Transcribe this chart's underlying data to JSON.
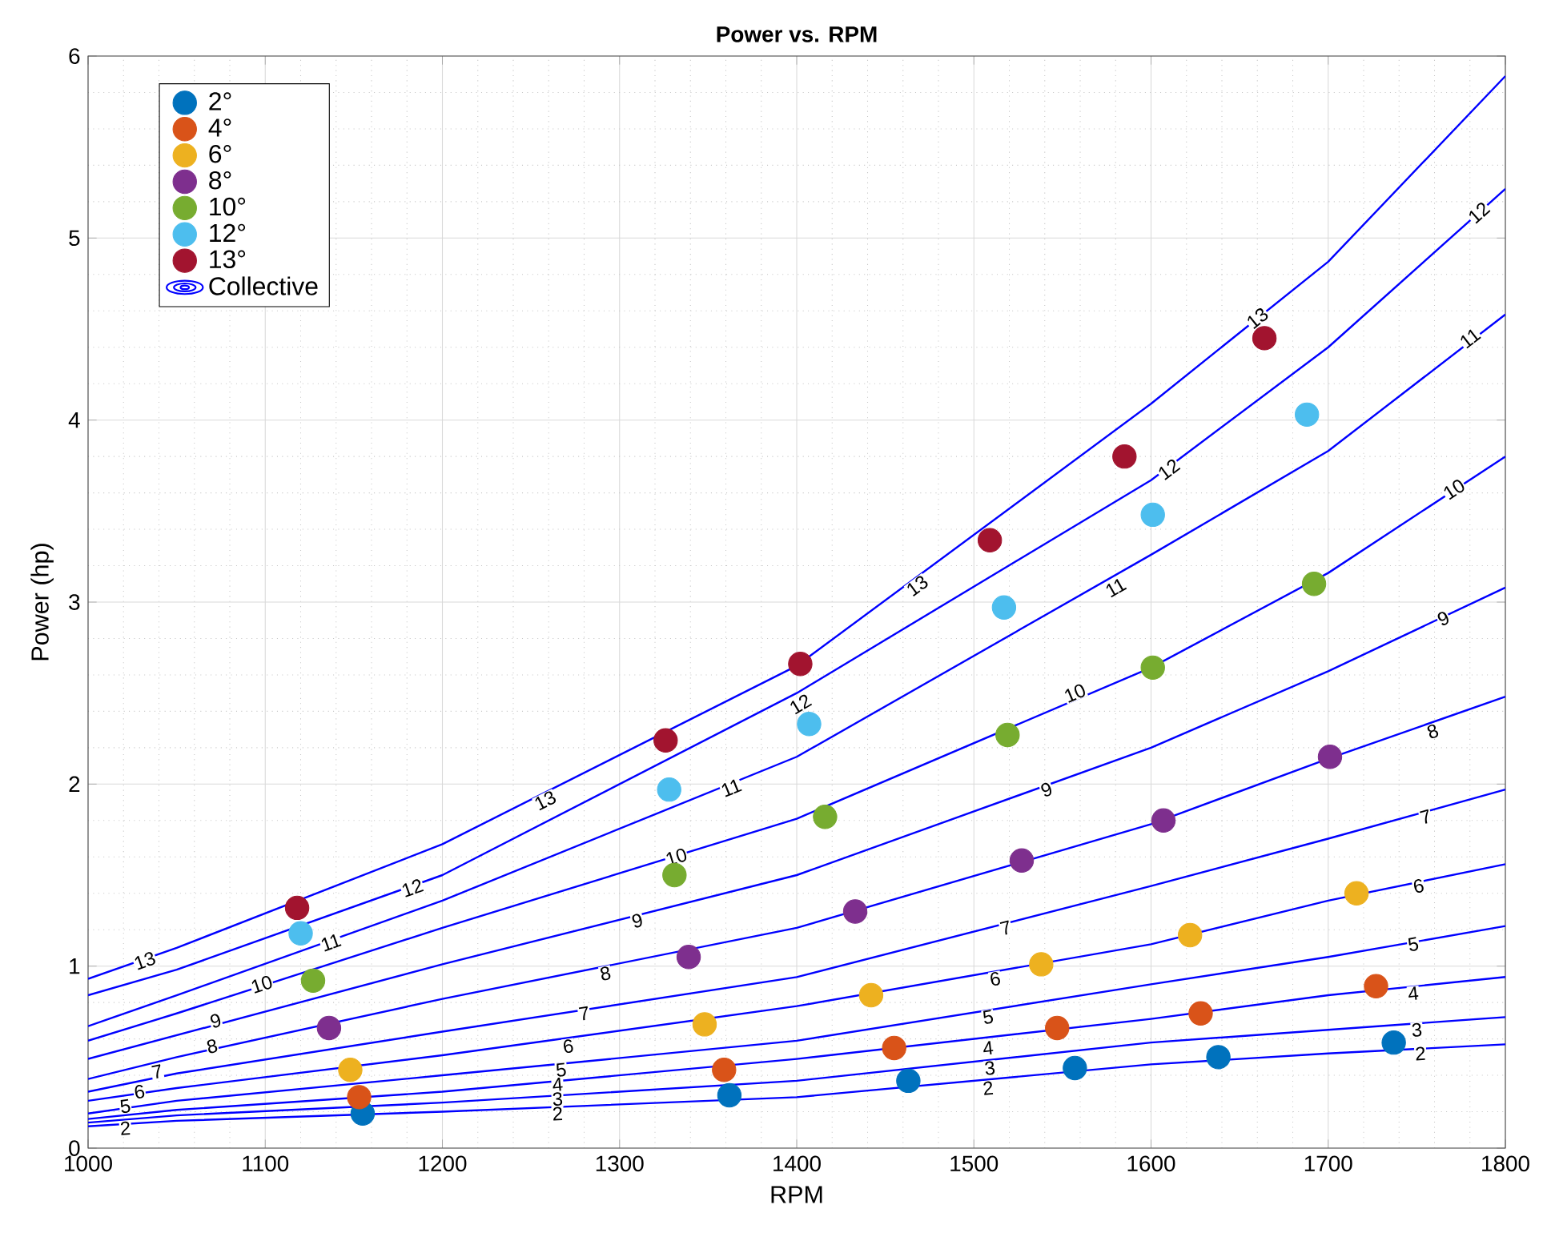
{
  "chart_data": {
    "type": "scatter",
    "title": "Power vs. RPM",
    "xlabel": "RPM",
    "ylabel": "Power (hp)",
    "xlim": [
      1000,
      1800
    ],
    "ylim": [
      0,
      6
    ],
    "xticks": [
      1000,
      1100,
      1200,
      1300,
      1400,
      1500,
      1600,
      1700,
      1800
    ],
    "yticks": [
      0,
      1,
      2,
      3,
      4,
      5,
      6
    ],
    "grid": true,
    "legend": "top left",
    "series": [
      {
        "type": "line",
        "marker": "none",
        "name": "Collective",
        "color": "#0000ff",
        "x": [
          1000,
          1050,
          1200,
          1400,
          1600,
          1700,
          1800
        ],
        "values": [
          0.12,
          0.15,
          0.2,
          0.28,
          0.46,
          0.52,
          0.57
        ]
      },
      {
        "type": "line",
        "marker": "none",
        "color": "#0000ff",
        "x": [
          1000,
          1050,
          1200,
          1400,
          1600,
          1700,
          1800
        ],
        "values": [
          0.14,
          0.18,
          0.25,
          0.37,
          0.58,
          0.65,
          0.72
        ]
      },
      {
        "type": "line",
        "marker": "none",
        "color": "#0000ff",
        "x": [
          1000,
          1050,
          1200,
          1400,
          1600,
          1700,
          1800
        ],
        "values": [
          0.16,
          0.21,
          0.31,
          0.49,
          0.71,
          0.84,
          0.94
        ]
      },
      {
        "type": "line",
        "marker": "none",
        "color": "#0000ff",
        "x": [
          1000,
          1050,
          1200,
          1400,
          1600,
          1700,
          1800
        ],
        "values": [
          0.19,
          0.26,
          0.4,
          0.59,
          0.9,
          1.05,
          1.22
        ]
      },
      {
        "type": "line",
        "marker": "none",
        "color": "#0000ff",
        "x": [
          1000,
          1050,
          1200,
          1400,
          1600,
          1700,
          1800
        ],
        "values": [
          0.26,
          0.33,
          0.51,
          0.78,
          1.12,
          1.36,
          1.56
        ]
      },
      {
        "type": "line",
        "marker": "none",
        "color": "#0000ff",
        "x": [
          1000,
          1050,
          1200,
          1400,
          1600,
          1700,
          1800
        ],
        "values": [
          0.31,
          0.41,
          0.64,
          0.94,
          1.44,
          1.7,
          1.97
        ]
      },
      {
        "type": "line",
        "marker": "none",
        "color": "#0000ff",
        "x": [
          1000,
          1050,
          1200,
          1400,
          1600,
          1700,
          1800
        ],
        "values": [
          0.38,
          0.5,
          0.82,
          1.21,
          1.78,
          2.14,
          2.48
        ]
      },
      {
        "type": "line",
        "marker": "none",
        "color": "#0000ff",
        "x": [
          1000,
          1050,
          1200,
          1400,
          1600,
          1700,
          1800
        ],
        "values": [
          0.49,
          0.62,
          1.01,
          1.5,
          2.2,
          2.62,
          3.08
        ]
      },
      {
        "type": "line",
        "marker": "none",
        "color": "#0000ff",
        "x": [
          1000,
          1050,
          1200,
          1400,
          1600,
          1700,
          1800
        ],
        "values": [
          0.59,
          0.74,
          1.21,
          1.81,
          2.64,
          3.16,
          3.8
        ]
      },
      {
        "type": "line",
        "marker": "none",
        "color": "#0000ff",
        "x": [
          1000,
          1050,
          1200,
          1400,
          1600,
          1700,
          1800
        ],
        "values": [
          0.67,
          0.84,
          1.36,
          2.15,
          3.26,
          3.83,
          4.58
        ]
      },
      {
        "type": "line",
        "marker": "none",
        "color": "#0000ff",
        "x": [
          1000,
          1050,
          1200,
          1400,
          1600,
          1700,
          1800
        ],
        "values": [
          0.84,
          0.98,
          1.5,
          2.5,
          3.67,
          4.4,
          5.27
        ]
      },
      {
        "type": "line",
        "marker": "none",
        "color": "#0000ff",
        "x": [
          1000,
          1050,
          1200,
          1400,
          1600,
          1700,
          1800
        ],
        "values": [
          0.93,
          1.1,
          1.67,
          2.65,
          4.09,
          4.87,
          5.89
        ]
      },
      {
        "name": "2°",
        "marker": "circle",
        "color": "#0072bd",
        "x": [
          1155,
          1362,
          1463,
          1557,
          1638,
          1737
        ],
        "values": [
          0.19,
          0.29,
          0.37,
          0.44,
          0.5,
          0.58
        ]
      },
      {
        "name": "4°",
        "marker": "circle",
        "color": "#d95319",
        "x": [
          1153,
          1359,
          1455,
          1547,
          1628,
          1727
        ],
        "values": [
          0.28,
          0.43,
          0.55,
          0.66,
          0.74,
          0.89
        ]
      },
      {
        "name": "6°",
        "marker": "circle",
        "color": "#edb120",
        "x": [
          1148,
          1348,
          1442,
          1538,
          1622,
          1716
        ],
        "values": [
          0.43,
          0.68,
          0.84,
          1.01,
          1.17,
          1.4
        ]
      },
      {
        "name": "8°",
        "marker": "circle",
        "color": "#7e2f8e",
        "x": [
          1136,
          1339,
          1433,
          1527,
          1607,
          1701
        ],
        "values": [
          0.66,
          1.05,
          1.3,
          1.58,
          1.8,
          2.15
        ]
      },
      {
        "name": "10°",
        "marker": "circle",
        "color": "#77ac30",
        "x": [
          1127,
          1331,
          1416,
          1519,
          1601,
          1692
        ],
        "values": [
          0.92,
          1.5,
          1.82,
          2.27,
          2.64,
          3.1
        ]
      },
      {
        "name": "12°",
        "marker": "circle",
        "color": "#4dbeee",
        "x": [
          1120,
          1328,
          1407,
          1517,
          1601,
          1688
        ],
        "values": [
          1.18,
          1.97,
          2.33,
          2.97,
          3.48,
          4.03
        ]
      },
      {
        "name": "13°",
        "marker": "circle",
        "color": "#a2142f",
        "x": [
          1118,
          1326,
          1402,
          1509,
          1585,
          1664
        ],
        "values": [
          1.32,
          2.24,
          2.66,
          3.34,
          3.8,
          4.45
        ]
      }
    ],
    "annotations": [
      {
        "text": "13",
        "x": 1032,
        "y": 1.03
      },
      {
        "text": "12",
        "x": 1183,
        "y": 1.43
      },
      {
        "text": "13",
        "x": 1258,
        "y": 1.91
      },
      {
        "text": "11",
        "x": 1137,
        "y": 1.13
      },
      {
        "text": "10",
        "x": 1098,
        "y": 0.9
      },
      {
        "text": "9",
        "x": 1072,
        "y": 0.7
      },
      {
        "text": "8",
        "x": 1070,
        "y": 0.56
      },
      {
        "text": "7",
        "x": 1039,
        "y": 0.42
      },
      {
        "text": "6",
        "x": 1029,
        "y": 0.31
      },
      {
        "text": "5",
        "x": 1021,
        "y": 0.23
      },
      {
        "text": "2",
        "x": 1021,
        "y": 0.11
      },
      {
        "text": "11",
        "x": 1363,
        "y": 1.98
      },
      {
        "text": "10",
        "x": 1332,
        "y": 1.6
      },
      {
        "text": "9",
        "x": 1310,
        "y": 1.25
      },
      {
        "text": "8",
        "x": 1292,
        "y": 0.96
      },
      {
        "text": "7",
        "x": 1280,
        "y": 0.74
      },
      {
        "text": "6",
        "x": 1271,
        "y": 0.56
      },
      {
        "text": "5",
        "x": 1267,
        "y": 0.43
      },
      {
        "text": "4",
        "x": 1265,
        "y": 0.35
      },
      {
        "text": "3",
        "x": 1265,
        "y": 0.27
      },
      {
        "text": "2",
        "x": 1265,
        "y": 0.19
      },
      {
        "text": "13",
        "x": 1468,
        "y": 3.09
      },
      {
        "text": "12",
        "x": 1402,
        "y": 2.44
      },
      {
        "text": "10",
        "x": 1557,
        "y": 2.5
      },
      {
        "text": "9",
        "x": 1541,
        "y": 1.97
      },
      {
        "text": "7",
        "x": 1518,
        "y": 1.21
      },
      {
        "text": "6",
        "x": 1512,
        "y": 0.93
      },
      {
        "text": "5",
        "x": 1508,
        "y": 0.72
      },
      {
        "text": "4",
        "x": 1508,
        "y": 0.55
      },
      {
        "text": "3",
        "x": 1509,
        "y": 0.44
      },
      {
        "text": "2",
        "x": 1508,
        "y": 0.33
      },
      {
        "text": "11",
        "x": 1580,
        "y": 3.08
      },
      {
        "text": "12",
        "x": 1610,
        "y": 3.73
      },
      {
        "text": "13",
        "x": 1660,
        "y": 4.56
      },
      {
        "text": "12",
        "x": 1785,
        "y": 5.14
      },
      {
        "text": "11",
        "x": 1780,
        "y": 4.45
      },
      {
        "text": "10",
        "x": 1771,
        "y": 3.62
      },
      {
        "text": "9",
        "x": 1765,
        "y": 2.91
      },
      {
        "text": "8",
        "x": 1759,
        "y": 2.29
      },
      {
        "text": "7",
        "x": 1755,
        "y": 1.82
      },
      {
        "text": "6",
        "x": 1751,
        "y": 1.44
      },
      {
        "text": "5",
        "x": 1748,
        "y": 1.12
      },
      {
        "text": "4",
        "x": 1748,
        "y": 0.85
      },
      {
        "text": "3",
        "x": 1750,
        "y": 0.65
      },
      {
        "text": "2",
        "x": 1752,
        "y": 0.52
      }
    ]
  }
}
